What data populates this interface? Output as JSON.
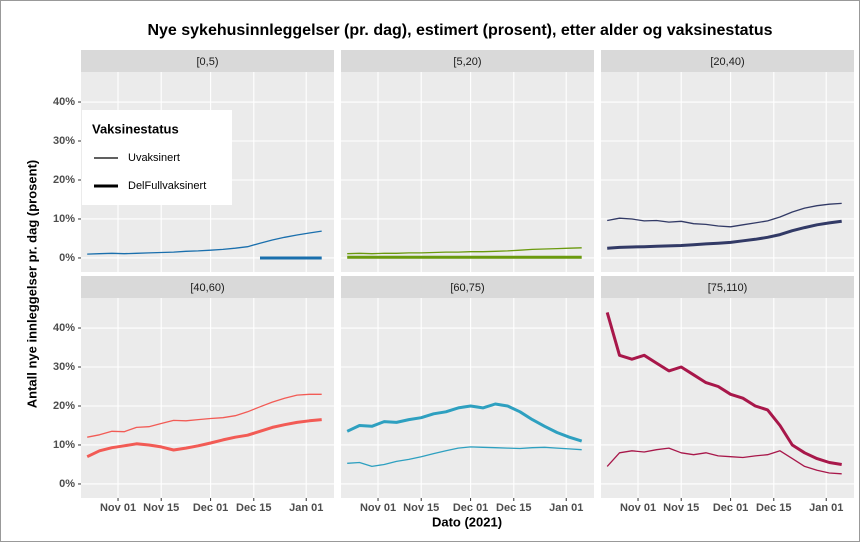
{
  "title": "Nye sykehusinnleggelser (pr. dag), estimert (prosent), etter alder og vaksinestatus",
  "x_label": "Dato (2021)",
  "y_label": "Antall nye innleggelser pr. dag (prosent)",
  "legend_title": "Vaksinestatus",
  "x": [
    "Oct 22",
    "Oct 26",
    "Oct 30",
    "Nov 03",
    "Nov 07",
    "Nov 11",
    "Nov 15",
    "Nov 19",
    "Nov 23",
    "Nov 27",
    "Dec 01",
    "Dec 05",
    "Dec 09",
    "Dec 13",
    "Dec 17",
    "Dec 21",
    "Dec 25",
    "Dec 29",
    "Jan 02",
    "Jan 06"
  ],
  "xlim": [
    "Oct 20",
    "Jan 10"
  ],
  "xticks": [
    "Nov 01",
    "Nov 15",
    "Dec 01",
    "Dec 15",
    "Jan 01"
  ],
  "ylim": [
    -3.6,
    47.7
  ],
  "yticks": [
    {
      "value": 0,
      "label": "0%"
    },
    {
      "value": 10,
      "label": "10%"
    },
    {
      "value": 20,
      "label": "20%"
    },
    {
      "value": 30,
      "label": "30%"
    },
    {
      "value": 40,
      "label": "40%"
    }
  ],
  "grid": true,
  "chart_data": [
    {
      "type": "line",
      "title": "[0,5)",
      "series": [
        {
          "name": "Uvaksinert",
          "color": "#1a6fad",
          "values": [
            1.0,
            1.1,
            1.2,
            1.1,
            1.2,
            1.3,
            1.4,
            1.5,
            1.7,
            1.8,
            2.0,
            2.2,
            2.5,
            2.9,
            3.8,
            4.6,
            5.3,
            5.9,
            6.4,
            6.9
          ]
        },
        {
          "name": "DelFullvaksinert",
          "color": "#1a6fad",
          "values": [
            null,
            null,
            null,
            null,
            null,
            null,
            null,
            null,
            null,
            null,
            null,
            null,
            null,
            null,
            0,
            0,
            0,
            0,
            0,
            0
          ]
        }
      ]
    },
    {
      "type": "line",
      "title": "[5,20)",
      "series": [
        {
          "name": "Uvaksinert",
          "color": "#6b9a0e",
          "values": [
            1.1,
            1.2,
            1.1,
            1.2,
            1.2,
            1.3,
            1.3,
            1.4,
            1.5,
            1.5,
            1.6,
            1.6,
            1.7,
            1.8,
            2.0,
            2.2,
            2.3,
            2.4,
            2.5,
            2.6
          ]
        },
        {
          "name": "DelFullvaksinert",
          "color": "#6b9a0e",
          "values": [
            0.2,
            0.2,
            0.2,
            0.2,
            0.2,
            0.2,
            0.2,
            0.2,
            0.2,
            0.2,
            0.2,
            0.2,
            0.2,
            0.2,
            0.2,
            0.2,
            0.2,
            0.2,
            0.2,
            0.2
          ]
        }
      ]
    },
    {
      "type": "line",
      "title": "[20,40)",
      "series": [
        {
          "name": "Uvaksinert",
          "color": "#323a66",
          "values": [
            9.6,
            10.2,
            10.0,
            9.5,
            9.6,
            9.2,
            9.4,
            8.8,
            8.6,
            8.2,
            8.0,
            8.5,
            9.0,
            9.5,
            10.5,
            11.8,
            12.8,
            13.4,
            13.8,
            14.0
          ]
        },
        {
          "name": "DelFullvaksinert",
          "color": "#323a66",
          "values": [
            2.5,
            2.7,
            2.8,
            2.9,
            3.0,
            3.1,
            3.2,
            3.4,
            3.6,
            3.8,
            4.0,
            4.4,
            4.8,
            5.3,
            6.0,
            7.0,
            7.8,
            8.5,
            9.0,
            9.4
          ]
        }
      ]
    },
    {
      "type": "line",
      "title": "[40,60)",
      "series": [
        {
          "name": "Uvaksinert",
          "color": "#f25b55",
          "values": [
            12.0,
            12.6,
            13.5,
            13.4,
            14.5,
            14.7,
            15.5,
            16.3,
            16.2,
            16.5,
            16.8,
            17.0,
            17.5,
            18.5,
            19.8,
            21.0,
            22.0,
            22.8,
            23.0,
            23.0
          ]
        },
        {
          "name": "DelFullvaksinert",
          "color": "#f25b55",
          "values": [
            7.0,
            8.5,
            9.3,
            9.8,
            10.3,
            10.0,
            9.5,
            8.7,
            9.2,
            9.8,
            10.5,
            11.3,
            12.0,
            12.5,
            13.5,
            14.5,
            15.2,
            15.8,
            16.2,
            16.5
          ]
        }
      ]
    },
    {
      "type": "line",
      "title": "[60,75)",
      "series": [
        {
          "name": "Uvaksinert",
          "color": "#2ea0c0",
          "values": [
            5.3,
            5.5,
            4.5,
            5.0,
            5.8,
            6.3,
            7.0,
            7.8,
            8.5,
            9.2,
            9.5,
            9.4,
            9.3,
            9.2,
            9.1,
            9.3,
            9.4,
            9.2,
            9.0,
            8.8
          ]
        },
        {
          "name": "DelFullvaksinert",
          "color": "#2ea0c0",
          "values": [
            13.5,
            15.0,
            14.8,
            16.0,
            15.8,
            16.5,
            17.0,
            18.0,
            18.5,
            19.5,
            20.0,
            19.5,
            20.5,
            20.0,
            18.5,
            16.5,
            14.8,
            13.2,
            12.0,
            11.0
          ]
        }
      ]
    },
    {
      "type": "line",
      "title": "[75,110)",
      "series": [
        {
          "name": "Uvaksinert",
          "color": "#a8174a",
          "values": [
            4.5,
            8.0,
            8.5,
            8.2,
            8.8,
            9.2,
            8.0,
            7.5,
            8.0,
            7.2,
            7.0,
            6.8,
            7.2,
            7.5,
            8.5,
            6.5,
            4.5,
            3.5,
            2.8,
            2.6
          ]
        },
        {
          "name": "DelFullvaksinert",
          "color": "#a8174a",
          "values": [
            44,
            33,
            32,
            33,
            31,
            29,
            30,
            28,
            26,
            25,
            23,
            22,
            20,
            19,
            15,
            10,
            8,
            6.5,
            5.5,
            5.0
          ]
        }
      ]
    }
  ]
}
